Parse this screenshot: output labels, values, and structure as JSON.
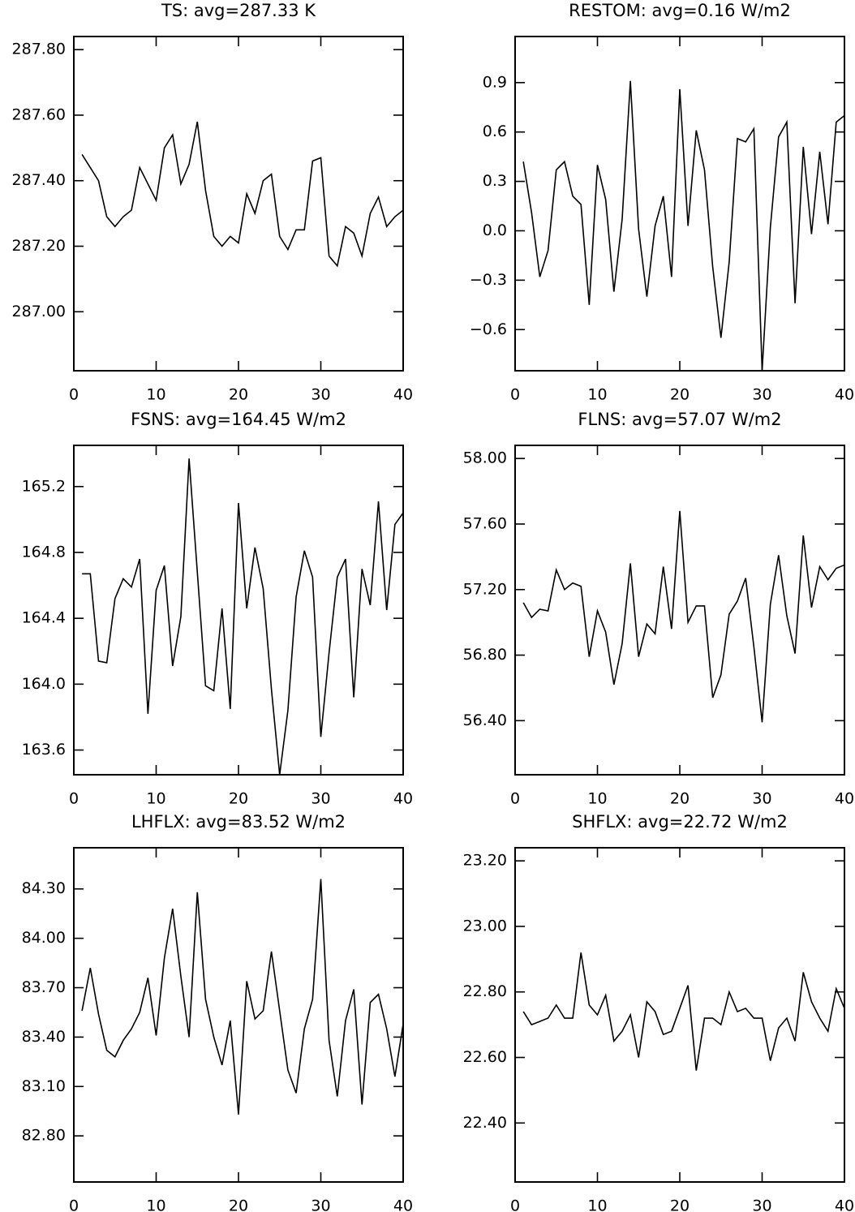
{
  "chart_data": [
    {
      "type": "line",
      "title": "TS: avg=287.33 K",
      "x": [
        1,
        2,
        3,
        4,
        5,
        6,
        7,
        8,
        9,
        10,
        11,
        12,
        13,
        14,
        15,
        16,
        17,
        18,
        19,
        20,
        21,
        22,
        23,
        24,
        25,
        26,
        27,
        28,
        29,
        30,
        31,
        32,
        33,
        34,
        35,
        36,
        37,
        38,
        39,
        40
      ],
      "series": [
        {
          "color": "#000000",
          "values": [
            287.48,
            287.44,
            287.4,
            287.29,
            287.26,
            287.29,
            287.31,
            287.44,
            287.39,
            287.34,
            287.5,
            287.54,
            287.39,
            287.45,
            287.58,
            287.37,
            287.23,
            287.2,
            287.23,
            287.21,
            287.36,
            287.3,
            287.4,
            287.42,
            287.23,
            287.19,
            287.25,
            287.25,
            287.46,
            287.47,
            287.17,
            287.14,
            287.26,
            287.24,
            287.17,
            287.3,
            287.35,
            287.26,
            287.29,
            287.31
          ]
        }
      ],
      "xlim": [
        0,
        40
      ],
      "xticks": [
        0,
        10,
        20,
        30,
        40
      ],
      "ylim": [
        286.82,
        287.84
      ],
      "yticks": [
        {
          "value": 287.0,
          "label": "287.00"
        },
        {
          "value": 287.2,
          "label": "287.20"
        },
        {
          "value": 287.4,
          "label": "287.40"
        },
        {
          "value": 287.6,
          "label": "287.60"
        },
        {
          "value": 287.8,
          "label": "287.80"
        }
      ]
    },
    {
      "type": "line",
      "title": "RESTOM: avg=0.16 W/m2",
      "x": [
        1,
        2,
        3,
        4,
        5,
        6,
        7,
        8,
        9,
        10,
        11,
        12,
        13,
        14,
        15,
        16,
        17,
        18,
        19,
        20,
        21,
        22,
        23,
        24,
        25,
        26,
        27,
        28,
        29,
        30,
        31,
        32,
        33,
        34,
        35,
        36,
        37,
        38,
        39,
        40
      ],
      "series": [
        {
          "color": "#000000",
          "values": [
            0.42,
            0.11,
            -0.28,
            -0.12,
            0.37,
            0.42,
            0.21,
            0.16,
            -0.45,
            0.4,
            0.19,
            -0.37,
            0.07,
            0.91,
            0.01,
            -0.4,
            0.03,
            0.21,
            -0.28,
            0.86,
            0.03,
            0.61,
            0.37,
            -0.22,
            -0.65,
            -0.19,
            0.56,
            0.54,
            0.62,
            -0.85,
            0.02,
            0.57,
            0.66,
            -0.44,
            0.51,
            -0.02,
            0.48,
            0.04,
            0.66,
            0.7
          ]
        }
      ],
      "xlim": [
        0,
        40
      ],
      "xticks": [
        0,
        10,
        20,
        30,
        40
      ],
      "ylim": [
        -0.85,
        1.18
      ],
      "yticks": [
        {
          "value": -0.6,
          "label": "−0.6"
        },
        {
          "value": -0.3,
          "label": "−0.3"
        },
        {
          "value": 0,
          "label": "0.0"
        },
        0.3,
        0.6,
        0.9
      ]
    },
    {
      "type": "line",
      "title": "FSNS: avg=164.45 W/m2",
      "x": [
        1,
        2,
        3,
        4,
        5,
        6,
        7,
        8,
        9,
        10,
        11,
        12,
        13,
        14,
        15,
        16,
        17,
        18,
        19,
        20,
        21,
        22,
        23,
        24,
        25,
        26,
        27,
        28,
        29,
        30,
        31,
        32,
        33,
        34,
        35,
        36,
        37,
        38,
        39,
        40
      ],
      "series": [
        {
          "color": "#000000",
          "values": [
            164.67,
            164.67,
            164.14,
            164.13,
            164.52,
            164.64,
            164.59,
            164.76,
            163.82,
            164.57,
            164.72,
            164.11,
            164.41,
            165.37,
            164.68,
            163.99,
            163.96,
            164.46,
            163.85,
            165.1,
            164.46,
            164.83,
            164.58,
            163.97,
            163.45,
            163.84,
            164.53,
            164.81,
            164.65,
            163.68,
            164.19,
            164.65,
            164.76,
            163.92,
            164.7,
            164.48,
            165.11,
            164.45,
            164.97,
            165.04
          ]
        }
      ],
      "xlim": [
        0,
        40
      ],
      "xticks": [
        0,
        10,
        20,
        30,
        40
      ],
      "ylim": [
        163.45,
        165.45
      ],
      "yticks": [
        163.6,
        {
          "value": 164.0,
          "label": "164.0"
        },
        164.4,
        164.8,
        165.2
      ]
    },
    {
      "type": "line",
      "title": "FLNS: avg=57.07 W/m2",
      "x": [
        1,
        2,
        3,
        4,
        5,
        6,
        7,
        8,
        9,
        10,
        11,
        12,
        13,
        14,
        15,
        16,
        17,
        18,
        19,
        20,
        21,
        22,
        23,
        24,
        25,
        26,
        27,
        28,
        29,
        30,
        31,
        32,
        33,
        34,
        35,
        36,
        37,
        38,
        39,
        40
      ],
      "series": [
        {
          "color": "#000000",
          "values": [
            57.12,
            57.03,
            57.08,
            57.07,
            57.32,
            57.2,
            57.24,
            57.22,
            56.79,
            57.07,
            56.94,
            56.62,
            56.87,
            57.36,
            56.79,
            56.99,
            56.93,
            57.34,
            56.96,
            57.68,
            57.0,
            57.1,
            57.1,
            56.54,
            56.68,
            57.05,
            57.13,
            57.27,
            56.85,
            56.39,
            57.11,
            57.41,
            57.04,
            56.81,
            57.53,
            57.09,
            57.34,
            57.26,
            57.33,
            57.35
          ]
        }
      ],
      "xlim": [
        0,
        40
      ],
      "xticks": [
        0,
        10,
        20,
        30,
        40
      ],
      "ylim": [
        56.07,
        58.08
      ],
      "yticks": [
        {
          "value": 56.4,
          "label": "56.40"
        },
        {
          "value": 56.8,
          "label": "56.80"
        },
        {
          "value": 57.2,
          "label": "57.20"
        },
        {
          "value": 57.6,
          "label": "57.60"
        },
        {
          "value": 58.0,
          "label": "58.00"
        }
      ]
    },
    {
      "type": "line",
      "title": "LHFLX: avg=83.52 W/m2",
      "x": [
        1,
        2,
        3,
        4,
        5,
        6,
        7,
        8,
        9,
        10,
        11,
        12,
        13,
        14,
        15,
        16,
        17,
        18,
        19,
        20,
        21,
        22,
        23,
        24,
        25,
        26,
        27,
        28,
        29,
        30,
        31,
        32,
        33,
        34,
        35,
        36,
        37,
        38,
        39,
        40
      ],
      "series": [
        {
          "color": "#000000",
          "values": [
            83.56,
            83.82,
            83.54,
            83.32,
            83.28,
            83.38,
            83.45,
            83.55,
            83.76,
            83.41,
            83.88,
            84.18,
            83.77,
            83.4,
            84.28,
            83.63,
            83.4,
            83.23,
            83.5,
            82.93,
            83.74,
            83.51,
            83.56,
            83.92,
            83.56,
            83.2,
            83.06,
            83.45,
            83.63,
            84.36,
            83.38,
            83.04,
            83.5,
            83.69,
            82.99,
            83.61,
            83.66,
            83.45,
            83.16,
            83.48
          ]
        }
      ],
      "xlim": [
        0,
        40
      ],
      "xticks": [
        0,
        10,
        20,
        30,
        40
      ],
      "ylim": [
        82.52,
        84.55
      ],
      "yticks": [
        {
          "value": 82.8,
          "label": "82.80"
        },
        {
          "value": 83.1,
          "label": "83.10"
        },
        {
          "value": 83.4,
          "label": "83.40"
        },
        {
          "value": 83.7,
          "label": "83.70"
        },
        {
          "value": 84.0,
          "label": "84.00"
        },
        {
          "value": 84.3,
          "label": "84.30"
        }
      ]
    },
    {
      "type": "line",
      "title": "SHFLX: avg=22.72 W/m2",
      "x": [
        1,
        2,
        3,
        4,
        5,
        6,
        7,
        8,
        9,
        10,
        11,
        12,
        13,
        14,
        15,
        16,
        17,
        18,
        19,
        20,
        21,
        22,
        23,
        24,
        25,
        26,
        27,
        28,
        29,
        30,
        31,
        32,
        33,
        34,
        35,
        36,
        37,
        38,
        39,
        40
      ],
      "series": [
        {
          "color": "#000000",
          "values": [
            22.74,
            22.7,
            22.71,
            22.72,
            22.76,
            22.72,
            22.72,
            22.92,
            22.76,
            22.73,
            22.79,
            22.65,
            22.68,
            22.73,
            22.6,
            22.77,
            22.74,
            22.67,
            22.68,
            22.75,
            22.82,
            22.56,
            22.72,
            22.72,
            22.7,
            22.8,
            22.74,
            22.75,
            22.72,
            22.72,
            22.59,
            22.69,
            22.72,
            22.65,
            22.86,
            22.77,
            22.72,
            22.68,
            22.81,
            22.75
          ]
        }
      ],
      "xlim": [
        0,
        40
      ],
      "xticks": [
        0,
        10,
        20,
        30,
        40
      ],
      "ylim": [
        22.22,
        23.24
      ],
      "yticks": [
        {
          "value": 22.4,
          "label": "22.40"
        },
        {
          "value": 22.6,
          "label": "22.60"
        },
        {
          "value": 22.8,
          "label": "22.80"
        },
        {
          "value": 23.0,
          "label": "23.00"
        },
        {
          "value": 23.2,
          "label": "23.20"
        }
      ]
    }
  ]
}
